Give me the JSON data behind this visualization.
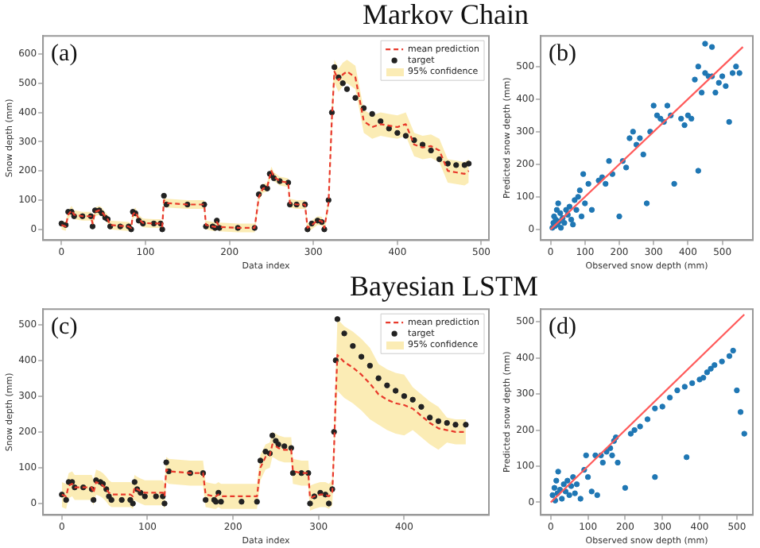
{
  "chart_data": [
    {
      "type": "line",
      "title": "Markov Chain",
      "xlabel": "Data index",
      "ylabel": "Snow depth (mm)",
      "annotations": [
        "(a)",
        "95% confidence"
      ],
      "xlim": [
        -22,
        509
      ],
      "ylim": [
        -37,
        662
      ],
      "xticks": [
        0,
        100,
        200,
        300,
        400,
        500
      ],
      "yticks": [
        0,
        100,
        200,
        300,
        400,
        500,
        600
      ],
      "grid": false,
      "legend": "top right",
      "series": [
        {
          "name": "mean prediction",
          "line_style": "dashed",
          "marker": "none",
          "color": "#e8392b",
          "x": [
            0,
            5,
            8,
            12,
            15,
            25,
            35,
            37,
            40,
            45,
            48,
            52,
            55,
            58,
            70,
            80,
            83,
            85,
            88,
            92,
            97,
            110,
            118,
            120,
            122,
            125,
            150,
            170,
            172,
            180,
            183,
            185,
            188,
            210,
            230,
            235,
            240,
            245,
            248,
            250,
            253,
            260,
            270,
            272,
            280,
            290,
            293,
            298,
            305,
            310,
            313,
            318,
            322,
            325,
            330,
            335,
            340,
            350,
            360,
            370,
            380,
            390,
            400,
            410,
            420,
            430,
            440,
            450,
            460,
            470,
            480,
            485
          ],
          "values": [
            15,
            10,
            50,
            65,
            50,
            45,
            45,
            20,
            60,
            65,
            60,
            45,
            35,
            15,
            12,
            10,
            5,
            50,
            60,
            35,
            22,
            20,
            20,
            10,
            100,
            90,
            85,
            85,
            15,
            10,
            8,
            25,
            8,
            5,
            5,
            110,
            140,
            145,
            180,
            200,
            180,
            165,
            160,
            90,
            85,
            85,
            5,
            15,
            30,
            28,
            5,
            90,
            380,
            540,
            510,
            530,
            540,
            520,
            370,
            350,
            360,
            355,
            350,
            360,
            290,
            280,
            285,
            270,
            200,
            195,
            190,
            200
          ],
          "lower": [
            0,
            -5,
            35,
            50,
            35,
            30,
            30,
            5,
            45,
            50,
            45,
            30,
            20,
            0,
            -3,
            -5,
            -10,
            35,
            45,
            20,
            7,
            5,
            5,
            -5,
            85,
            75,
            70,
            70,
            0,
            -5,
            -7,
            10,
            -7,
            -10,
            -10,
            95,
            125,
            130,
            165,
            185,
            165,
            150,
            145,
            75,
            70,
            70,
            -10,
            0,
            15,
            13,
            -10,
            75,
            340,
            500,
            470,
            490,
            500,
            480,
            330,
            310,
            320,
            315,
            310,
            320,
            250,
            240,
            245,
            230,
            160,
            155,
            150,
            160
          ],
          "upper": [
            30,
            25,
            65,
            80,
            65,
            60,
            60,
            35,
            75,
            80,
            75,
            60,
            50,
            30,
            27,
            25,
            20,
            65,
            75,
            50,
            37,
            35,
            35,
            25,
            115,
            105,
            100,
            100,
            30,
            25,
            23,
            40,
            23,
            20,
            20,
            125,
            155,
            160,
            195,
            215,
            195,
            180,
            175,
            105,
            100,
            100,
            20,
            30,
            45,
            43,
            20,
            105,
            420,
            580,
            550,
            570,
            580,
            560,
            410,
            390,
            400,
            395,
            390,
            400,
            330,
            320,
            325,
            310,
            240,
            235,
            230,
            240
          ]
        },
        {
          "name": "target",
          "type": "scatter",
          "marker": "circle",
          "color": "#222222",
          "x": [
            0,
            5,
            8,
            12,
            15,
            25,
            35,
            37,
            40,
            45,
            48,
            52,
            55,
            58,
            70,
            80,
            83,
            85,
            88,
            92,
            97,
            110,
            118,
            120,
            122,
            125,
            150,
            170,
            172,
            180,
            183,
            185,
            188,
            210,
            230,
            235,
            240,
            245,
            248,
            250,
            253,
            260,
            270,
            272,
            280,
            290,
            293,
            298,
            305,
            310,
            313,
            318,
            322,
            325,
            330,
            335,
            340,
            350,
            360,
            370,
            380,
            390,
            400,
            410,
            420,
            430,
            440,
            450,
            460,
            470,
            480,
            485
          ],
          "values": [
            20,
            15,
            60,
            60,
            45,
            45,
            45,
            10,
            65,
            65,
            55,
            40,
            35,
            10,
            10,
            10,
            0,
            60,
            55,
            30,
            20,
            20,
            20,
            0,
            115,
            85,
            85,
            85,
            10,
            10,
            5,
            30,
            5,
            5,
            5,
            120,
            145,
            140,
            190,
            185,
            175,
            165,
            160,
            85,
            85,
            85,
            0,
            20,
            30,
            25,
            0,
            100,
            400,
            555,
            520,
            500,
            480,
            450,
            415,
            395,
            370,
            345,
            330,
            320,
            305,
            290,
            270,
            240,
            225,
            220,
            220,
            225
          ]
        }
      ]
    },
    {
      "type": "scatter",
      "xlabel": "Observed snow depth (mm)",
      "ylabel": "Predicted snow depth (mm)",
      "annotations": [
        "(b)"
      ],
      "xlim": [
        -29,
        589
      ],
      "ylim": [
        -33,
        594
      ],
      "xticks": [
        0,
        100,
        200,
        300,
        400,
        500
      ],
      "yticks": [
        0,
        100,
        200,
        300,
        400,
        500
      ],
      "grid": false,
      "series": [
        {
          "marker": "circle",
          "color": "#1f77b4",
          "x": [
            5,
            8,
            10,
            12,
            15,
            18,
            20,
            22,
            25,
            28,
            30,
            35,
            40,
            45,
            50,
            55,
            60,
            65,
            70,
            75,
            80,
            85,
            90,
            95,
            100,
            110,
            120,
            140,
            150,
            160,
            170,
            180,
            200,
            210,
            220,
            230,
            240,
            250,
            260,
            270,
            280,
            290,
            300,
            310,
            320,
            330,
            340,
            350,
            360,
            380,
            390,
            400,
            410,
            420,
            430,
            440,
            450,
            460,
            470,
            480,
            490,
            500,
            510,
            520,
            530,
            540,
            550,
            430,
            470,
            450
          ],
          "values": [
            5,
            20,
            40,
            10,
            30,
            60,
            15,
            80,
            25,
            50,
            5,
            35,
            20,
            60,
            45,
            70,
            30,
            15,
            90,
            60,
            100,
            120,
            40,
            170,
            80,
            140,
            60,
            150,
            160,
            140,
            210,
            170,
            40,
            210,
            190,
            280,
            300,
            260,
            280,
            230,
            80,
            300,
            380,
            350,
            340,
            330,
            380,
            350,
            140,
            340,
            320,
            350,
            340,
            460,
            180,
            420,
            480,
            470,
            470,
            420,
            450,
            470,
            440,
            330,
            480,
            500,
            480,
            500,
            560,
            570
          ]
        },
        {
          "type": "line",
          "marker": "none",
          "color": "#ff5a5a",
          "x": [
            0,
            560
          ],
          "values": [
            0,
            560
          ]
        }
      ]
    },
    {
      "type": "line",
      "title": "Bayesian LSTM",
      "xlabel": "Data index",
      "ylabel": "Snow depth (mm)",
      "annotations": [
        "(c)",
        "95% confidence"
      ],
      "xlim": [
        -22,
        499
      ],
      "ylim": [
        -32,
        543
      ],
      "xticks": [
        0,
        100,
        200,
        300,
        400
      ],
      "yticks": [
        0,
        100,
        200,
        300,
        400,
        500
      ],
      "grid": false,
      "legend": "top right",
      "series": [
        {
          "name": "mean prediction",
          "line_style": "dashed",
          "marker": "none",
          "color": "#e8392b",
          "x": [
            0,
            5,
            8,
            12,
            15,
            25,
            35,
            37,
            40,
            45,
            48,
            52,
            55,
            58,
            70,
            80,
            83,
            85,
            88,
            92,
            97,
            110,
            118,
            120,
            122,
            125,
            150,
            165,
            168,
            178,
            180,
            183,
            186,
            210,
            228,
            232,
            238,
            243,
            246,
            250,
            253,
            260,
            268,
            270,
            280,
            288,
            290,
            295,
            302,
            308,
            312,
            316,
            318,
            320,
            322,
            330,
            340,
            350,
            360,
            370,
            380,
            390,
            400,
            410,
            420,
            430,
            440,
            450,
            460,
            472
          ],
          "values": [
            25,
            20,
            50,
            55,
            45,
            45,
            45,
            30,
            60,
            55,
            50,
            40,
            30,
            25,
            25,
            25,
            20,
            45,
            40,
            35,
            30,
            30,
            30,
            20,
            95,
            90,
            85,
            85,
            25,
            20,
            20,
            25,
            20,
            20,
            20,
            100,
            130,
            135,
            165,
            160,
            155,
            150,
            150,
            90,
            85,
            85,
            15,
            20,
            25,
            25,
            20,
            30,
            150,
            300,
            415,
            395,
            380,
            360,
            335,
            305,
            290,
            280,
            275,
            265,
            245,
            225,
            210,
            205,
            200,
            200
          ],
          "lower": [
            -10,
            -15,
            15,
            20,
            10,
            10,
            10,
            -5,
            25,
            20,
            15,
            5,
            -5,
            -10,
            -10,
            -10,
            -15,
            10,
            5,
            0,
            -5,
            -5,
            -5,
            -15,
            60,
            55,
            50,
            50,
            -10,
            -15,
            -15,
            -10,
            -15,
            -15,
            -15,
            65,
            95,
            100,
            130,
            125,
            120,
            115,
            115,
            55,
            50,
            50,
            -20,
            -15,
            -10,
            -10,
            -15,
            -5,
            115,
            240,
            315,
            295,
            280,
            260,
            235,
            220,
            205,
            195,
            190,
            205,
            185,
            165,
            150,
            170,
            165,
            165
          ],
          "upper": [
            60,
            55,
            85,
            90,
            80,
            80,
            80,
            65,
            95,
            90,
            85,
            75,
            65,
            60,
            60,
            60,
            55,
            80,
            75,
            70,
            65,
            65,
            65,
            55,
            130,
            125,
            120,
            120,
            60,
            55,
            55,
            60,
            55,
            55,
            55,
            135,
            165,
            170,
            200,
            195,
            190,
            185,
            185,
            125,
            120,
            120,
            50,
            55,
            60,
            60,
            55,
            65,
            185,
            360,
            515,
            495,
            480,
            460,
            435,
            390,
            375,
            365,
            360,
            325,
            305,
            285,
            270,
            240,
            235,
            235
          ]
        },
        {
          "name": "target",
          "type": "scatter",
          "marker": "circle",
          "color": "#222222",
          "x": [
            0,
            5,
            8,
            12,
            15,
            25,
            35,
            37,
            40,
            45,
            48,
            52,
            55,
            58,
            70,
            80,
            83,
            85,
            88,
            92,
            97,
            110,
            118,
            120,
            122,
            125,
            150,
            165,
            168,
            178,
            180,
            183,
            186,
            210,
            228,
            232,
            238,
            243,
            246,
            250,
            253,
            260,
            268,
            270,
            280,
            288,
            290,
            295,
            302,
            308,
            312,
            316,
            318,
            320,
            322,
            330,
            340,
            350,
            360,
            370,
            380,
            390,
            400,
            410,
            420,
            430,
            440,
            450,
            460,
            472
          ],
          "values": [
            25,
            10,
            60,
            60,
            45,
            45,
            40,
            10,
            65,
            60,
            55,
            40,
            20,
            10,
            10,
            10,
            0,
            60,
            40,
            30,
            20,
            20,
            20,
            0,
            115,
            90,
            85,
            85,
            10,
            10,
            5,
            30,
            5,
            5,
            5,
            120,
            145,
            140,
            190,
            175,
            165,
            160,
            155,
            85,
            85,
            85,
            0,
            20,
            30,
            25,
            0,
            40,
            200,
            400,
            515,
            475,
            440,
            410,
            385,
            350,
            330,
            315,
            300,
            290,
            270,
            240,
            230,
            225,
            220,
            220
          ]
        }
      ]
    },
    {
      "type": "scatter",
      "xlabel": "Observed snow depth (mm)",
      "ylabel": "Predicted snow depth (mm)",
      "annotations": [
        "(d)"
      ],
      "xlim": [
        -27,
        543
      ],
      "ylim": [
        -35,
        535
      ],
      "xticks": [
        0,
        100,
        200,
        300,
        400,
        500
      ],
      "yticks": [
        0,
        100,
        200,
        300,
        400,
        500
      ],
      "grid": false,
      "series": [
        {
          "marker": "circle",
          "color": "#1f77b4",
          "x": [
            5,
            10,
            12,
            15,
            18,
            20,
            25,
            30,
            35,
            40,
            45,
            50,
            55,
            60,
            65,
            70,
            80,
            90,
            95,
            100,
            110,
            120,
            125,
            135,
            140,
            150,
            160,
            165,
            170,
            175,
            180,
            200,
            215,
            225,
            240,
            260,
            280,
            300,
            320,
            340,
            360,
            380,
            400,
            410,
            420,
            430,
            440,
            460,
            480,
            490,
            280,
            365,
            500,
            510,
            520
          ],
          "values": [
            20,
            40,
            5,
            60,
            25,
            85,
            35,
            10,
            50,
            30,
            60,
            20,
            45,
            70,
            25,
            50,
            10,
            90,
            130,
            70,
            30,
            130,
            20,
            130,
            110,
            140,
            150,
            130,
            170,
            180,
            110,
            40,
            190,
            200,
            210,
            230,
            260,
            265,
            290,
            310,
            320,
            330,
            340,
            345,
            360,
            370,
            380,
            390,
            405,
            420,
            70,
            125,
            310,
            250,
            190
          ]
        },
        {
          "type": "line",
          "marker": "none",
          "color": "#ff5a5a",
          "x": [
            0,
            520
          ],
          "values": [
            0,
            520
          ]
        }
      ]
    }
  ]
}
